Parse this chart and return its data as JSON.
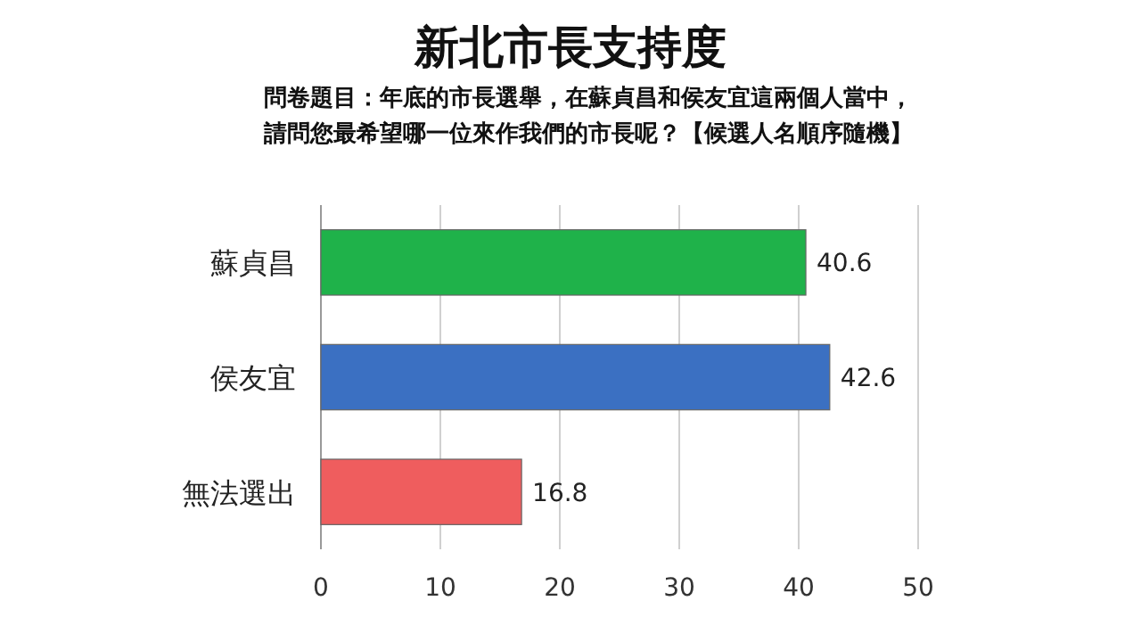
{
  "chart_data": {
    "type": "bar",
    "orientation": "horizontal",
    "title": "新北市長支持度",
    "subtitle": "問卷題目：年底的市長選舉，在蘇貞昌和侯友宜這兩個人當中，請問您最希望哪一位來作我們的市長呢？【候選人名順序隨機】",
    "categories": [
      "蘇貞昌",
      "侯友宜",
      "無法選出"
    ],
    "values": [
      40.6,
      42.6,
      16.8
    ],
    "colors": [
      "#1fb24a",
      "#3b70c2",
      "#ef5d5e"
    ],
    "xlim": [
      0,
      50
    ],
    "xticks": [
      0,
      10,
      20,
      30,
      40,
      50
    ],
    "grid": "x",
    "data_labels": true
  }
}
